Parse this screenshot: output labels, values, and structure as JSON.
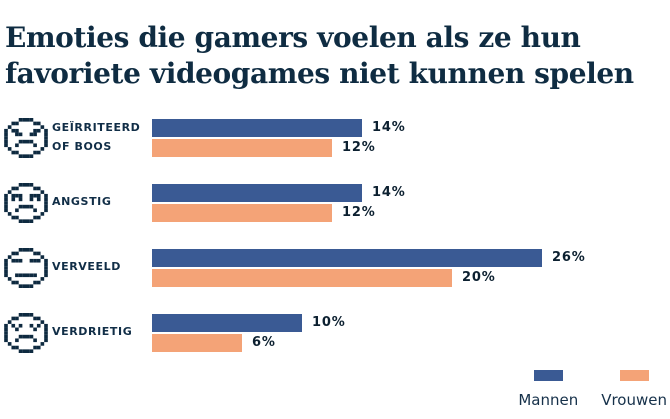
{
  "title": "Emoties die gamers voelen als ze hun favoriete videogames niet kunnen spelen",
  "colors": {
    "mannen": "#3a5a94",
    "vrouwen": "#f4a377",
    "icon": "#0e2a40",
    "text_dark": "#0f2c42"
  },
  "legend": [
    {
      "label": "Mannen",
      "color_key": "mannen"
    },
    {
      "label": "Vrouwen",
      "color_key": "vrouwen"
    }
  ],
  "chart_data": {
    "type": "bar",
    "orientation": "horizontal",
    "title": "Emoties die gamers voelen als ze hun favoriete videogames niet kunnen spelen",
    "unit": "%",
    "xlim": [
      0,
      26
    ],
    "categories": [
      "Geïrriteerd of boos",
      "Angstig",
      "Verveeld",
      "Verdrietig"
    ],
    "category_display_lines": [
      [
        "GEÏRRITEERD",
        "OF BOOS"
      ],
      [
        "ANGSTIG"
      ],
      [
        "VERVEELD"
      ],
      [
        "VERDRIETIG"
      ]
    ],
    "category_icons": [
      "angry-face-icon",
      "anxious-face-icon",
      "bored-face-icon",
      "sad-face-icon"
    ],
    "series": [
      {
        "name": "Mannen",
        "values": [
          14,
          14,
          26,
          10
        ]
      },
      {
        "name": "Vrouwen",
        "values": [
          12,
          12,
          20,
          6
        ]
      }
    ],
    "value_suffix": "%",
    "legend_position": "bottom-right",
    "grid": false
  }
}
